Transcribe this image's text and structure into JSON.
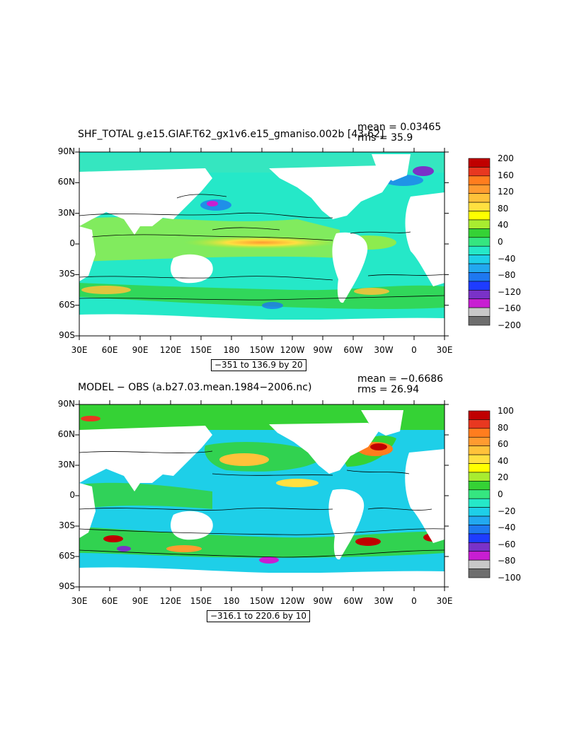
{
  "panels": [
    {
      "title": "SHF_TOTAL g.e15.GIAF.T62_gx1v6.e15_gmaniso.002b [43-62]",
      "mean_label": "mean = 0.03465",
      "rms_label": "rms = 35.9",
      "contour_interval_label": "−351 to 136.9 by 20",
      "colorbar_labels": [
        "200",
        "160",
        "120",
        "80",
        "40",
        "0",
        "−40",
        "−80",
        "−120",
        "−160",
        "−200"
      ],
      "colorbar_colors": [
        "#c00000",
        "#e83820",
        "#ff7d1e",
        "#ff9b30",
        "#ffc23a",
        "#ffe040",
        "#ffff00",
        "#a8ec30",
        "#35d235",
        "#35e680",
        "#25e8c8",
        "#1ecfe8",
        "#22a8f0",
        "#1e78f0",
        "#1e3cff",
        "#7a32c8",
        "#c81ed2",
        "#c8c8c8",
        "#6e6e6e"
      ]
    },
    {
      "title": "MODEL − OBS (a.b27.03.mean.1984−2006.nc)",
      "mean_label": "mean = −0.6686",
      "rms_label": "rms = 26.94",
      "contour_interval_label": "−316.1 to 220.6 by 10",
      "colorbar_labels": [
        "100",
        "80",
        "60",
        "40",
        "20",
        "0",
        "−20",
        "−40",
        "−60",
        "−80",
        "−100"
      ],
      "colorbar_colors": [
        "#c00000",
        "#e83820",
        "#ff7d1e",
        "#ff9b30",
        "#ffc23a",
        "#ffe040",
        "#ffff00",
        "#a8ec30",
        "#35d235",
        "#35e680",
        "#25e8c8",
        "#1ecfe8",
        "#22a8f0",
        "#1e78f0",
        "#1e3cff",
        "#7a32c8",
        "#c81ed2",
        "#c8c8c8",
        "#6e6e6e"
      ]
    }
  ],
  "lat_labels": [
    "90N",
    "60N",
    "30N",
    "0",
    "30S",
    "60S",
    "90S"
  ],
  "lon_labels": [
    "30E",
    "60E",
    "90E",
    "120E",
    "150E",
    "180",
    "150W",
    "120W",
    "90W",
    "60W",
    "30W",
    "0",
    "30E"
  ],
  "colors": {
    "land": "#ffffff",
    "ocean_base_top": "#25e8c8",
    "ocean_base_bottom": "#25e8c8",
    "contour": "#000000"
  }
}
